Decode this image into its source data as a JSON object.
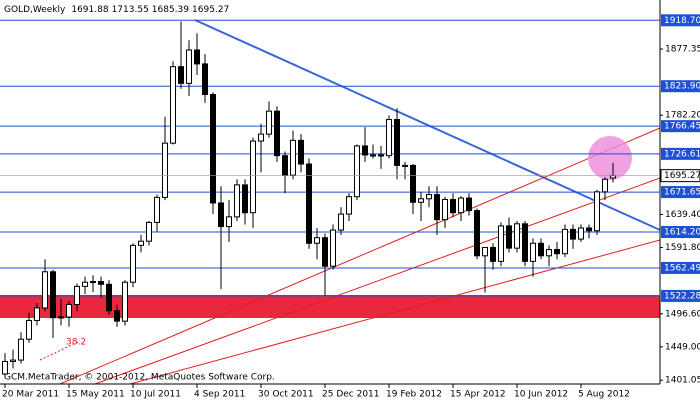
{
  "chart_data": {
    "type": "candlestick",
    "symbol": "GOLD,Weekly",
    "footer": "GCM.MetaTrader, © 2001-2012, MetaQuotes Software Corp.",
    "annotations": [
      "38.2"
    ],
    "categories": [
      "20 Mar 2011",
      null,
      null,
      null,
      null,
      null,
      null,
      null,
      "15 May 2011",
      null,
      null,
      null,
      null,
      null,
      null,
      null,
      "10 Jul 2011",
      null,
      null,
      null,
      null,
      null,
      null,
      null,
      "4 Sep 2011",
      null,
      null,
      null,
      null,
      null,
      null,
      null,
      "30 Oct 2011",
      null,
      null,
      null,
      null,
      null,
      null,
      null,
      "25 Dec 2011",
      null,
      null,
      null,
      null,
      null,
      null,
      null,
      "19 Feb 2012",
      null,
      null,
      null,
      null,
      null,
      null,
      null,
      "15 Apr 2012",
      null,
      null,
      null,
      null,
      null,
      null,
      null,
      "10 Jun 2012",
      null,
      null,
      null,
      null,
      null,
      null,
      null,
      "5 Aug 2012",
      null,
      null,
      null,
      null
    ],
    "open": [
      1410,
      1428,
      1430,
      1460,
      1487,
      1505,
      1557,
      1491,
      1492,
      1510,
      1536,
      1542,
      1543,
      1539,
      1501,
      1486,
      1542,
      1595,
      1601,
      1628,
      1664,
      1742,
      1852,
      1828,
      1876,
      1856,
      1812,
      1656,
      1622,
      1636,
      1682,
      1642,
      1745,
      1755,
      1788,
      1724,
      1696,
      1746,
      1712,
      1598,
      1606,
      1565,
      1617,
      1640,
      1665,
      1738,
      1725,
      1725,
      1724,
      1776,
      1710,
      1710,
      1657,
      1662,
      1668,
      1632,
      1661,
      1642,
      1663,
      1645,
      1580,
      1592,
      1572,
      1623,
      1591,
      1626,
      1572,
      1598,
      1580,
      1589,
      1583,
      1618,
      1604,
      1620,
      1616,
      1672,
      1691.88
    ],
    "high": [
      1440,
      1445,
      1470,
      1498,
      1512,
      1575,
      1560,
      1518,
      1515,
      1540,
      1550,
      1552,
      1550,
      1545,
      1510,
      1545,
      1598,
      1610,
      1630,
      1668,
      1780,
      1860,
      1917,
      1890,
      1900,
      1870,
      1815,
      1680,
      1660,
      1690,
      1690,
      1750,
      1770,
      1802,
      1795,
      1730,
      1760,
      1755,
      1720,
      1620,
      1612,
      1625,
      1650,
      1670,
      1740,
      1765,
      1740,
      1738,
      1782,
      1792,
      1715,
      1712,
      1672,
      1680,
      1680,
      1665,
      1670,
      1666,
      1670,
      1648,
      1592,
      1598,
      1628,
      1635,
      1630,
      1630,
      1605,
      1605,
      1595,
      1600,
      1625,
      1625,
      1625,
      1625,
      1675,
      1693,
      1713.55
    ],
    "low": [
      1405,
      1418,
      1425,
      1455,
      1480,
      1500,
      1462,
      1480,
      1478,
      1500,
      1525,
      1528,
      1520,
      1495,
      1478,
      1480,
      1535,
      1585,
      1595,
      1615,
      1660,
      1740,
      1820,
      1810,
      1840,
      1800,
      1640,
      1532,
      1600,
      1630,
      1625,
      1620,
      1700,
      1750,
      1715,
      1670,
      1690,
      1700,
      1590,
      1575,
      1523,
      1560,
      1610,
      1630,
      1660,
      1715,
      1720,
      1705,
      1720,
      1690,
      1690,
      1640,
      1630,
      1650,
      1610,
      1620,
      1635,
      1630,
      1638,
      1575,
      1527,
      1560,
      1565,
      1585,
      1585,
      1565,
      1550,
      1575,
      1565,
      1575,
      1578,
      1590,
      1600,
      1605,
      1610,
      1660,
      1685.39
    ],
    "close": [
      1428,
      1430,
      1460,
      1487,
      1505,
      1557,
      1491,
      1492,
      1510,
      1536,
      1542,
      1543,
      1539,
      1501,
      1486,
      1542,
      1595,
      1601,
      1628,
      1664,
      1742,
      1852,
      1828,
      1876,
      1856,
      1812,
      1656,
      1622,
      1636,
      1682,
      1642,
      1745,
      1755,
      1788,
      1724,
      1696,
      1746,
      1712,
      1598,
      1606,
      1565,
      1617,
      1640,
      1665,
      1738,
      1725,
      1725,
      1724,
      1776,
      1710,
      1710,
      1657,
      1662,
      1668,
      1632,
      1661,
      1642,
      1663,
      1645,
      1580,
      1592,
      1572,
      1623,
      1591,
      1626,
      1572,
      1598,
      1580,
      1589,
      1583,
      1618,
      1604,
      1620,
      1616,
      1672,
      1690,
      1695.27
    ],
    "ylim": [
      1395.6,
      1947.9
    ],
    "yticks": [
      1877.35,
      {
        "value": 1782.2,
        "label": "1782.20"
      },
      {
        "value": 1639.4,
        "label": "1639.40"
      },
      {
        "value": 1591.8,
        "label": "1591.80"
      },
      {
        "value": 1496.6,
        "label": "1496.60"
      },
      {
        "value": 1449,
        "label": "1449.00"
      },
      1401.05
    ],
    "levels": [
      {
        "value": 1918.7,
        "label": "1918.70"
      },
      {
        "value": 1823.9,
        "label": "1823.90"
      },
      1766.45,
      1726.61,
      1671.65,
      {
        "value": 1614.2,
        "label": "1614.20"
      },
      1562.49,
      1522.28
    ],
    "level_color": "#1e4fd6",
    "up_color": "#ffffff",
    "down_color": "#000000"
  }
}
